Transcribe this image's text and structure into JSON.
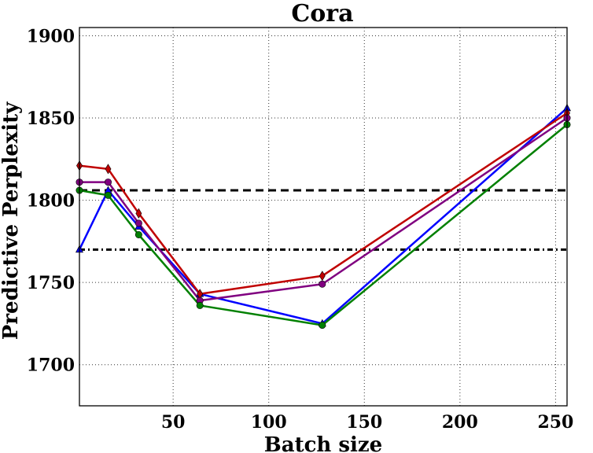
{
  "chart_data": {
    "type": "line",
    "title": "Cora",
    "xlabel": "Batch size",
    "ylabel": "Predictive Perplexity",
    "xlim": [
      1,
      256
    ],
    "ylim": [
      1675,
      1905
    ],
    "xticks": [
      50,
      100,
      150,
      200,
      250
    ],
    "yticks": [
      1700,
      1750,
      1800,
      1850,
      1900
    ],
    "grid": true,
    "x": [
      1,
      16,
      32,
      64,
      128,
      256
    ],
    "series": [
      {
        "name": "blue series",
        "color": "#0000ff",
        "marker": "triangle",
        "values": [
          1770,
          1806,
          1784,
          1743,
          1725,
          1856
        ]
      },
      {
        "name": "red series",
        "color": "#c00000",
        "marker": "diamond",
        "values": [
          1821,
          1819,
          1792,
          1743,
          1754,
          1853
        ]
      },
      {
        "name": "purple series",
        "color": "#800080",
        "marker": "circle",
        "values": [
          1811,
          1811,
          1786,
          1739,
          1749,
          1850
        ]
      },
      {
        "name": "green series",
        "color": "#008000",
        "marker": "circle",
        "values": [
          1806,
          1803,
          1779,
          1736,
          1724,
          1846
        ]
      }
    ],
    "reference_lines": [
      {
        "name": "dashed baseline",
        "value": 1806,
        "style": "dashed",
        "color": "#000000"
      },
      {
        "name": "dash-dot baseline",
        "value": 1770,
        "style": "dashdot",
        "color": "#000000"
      }
    ]
  }
}
